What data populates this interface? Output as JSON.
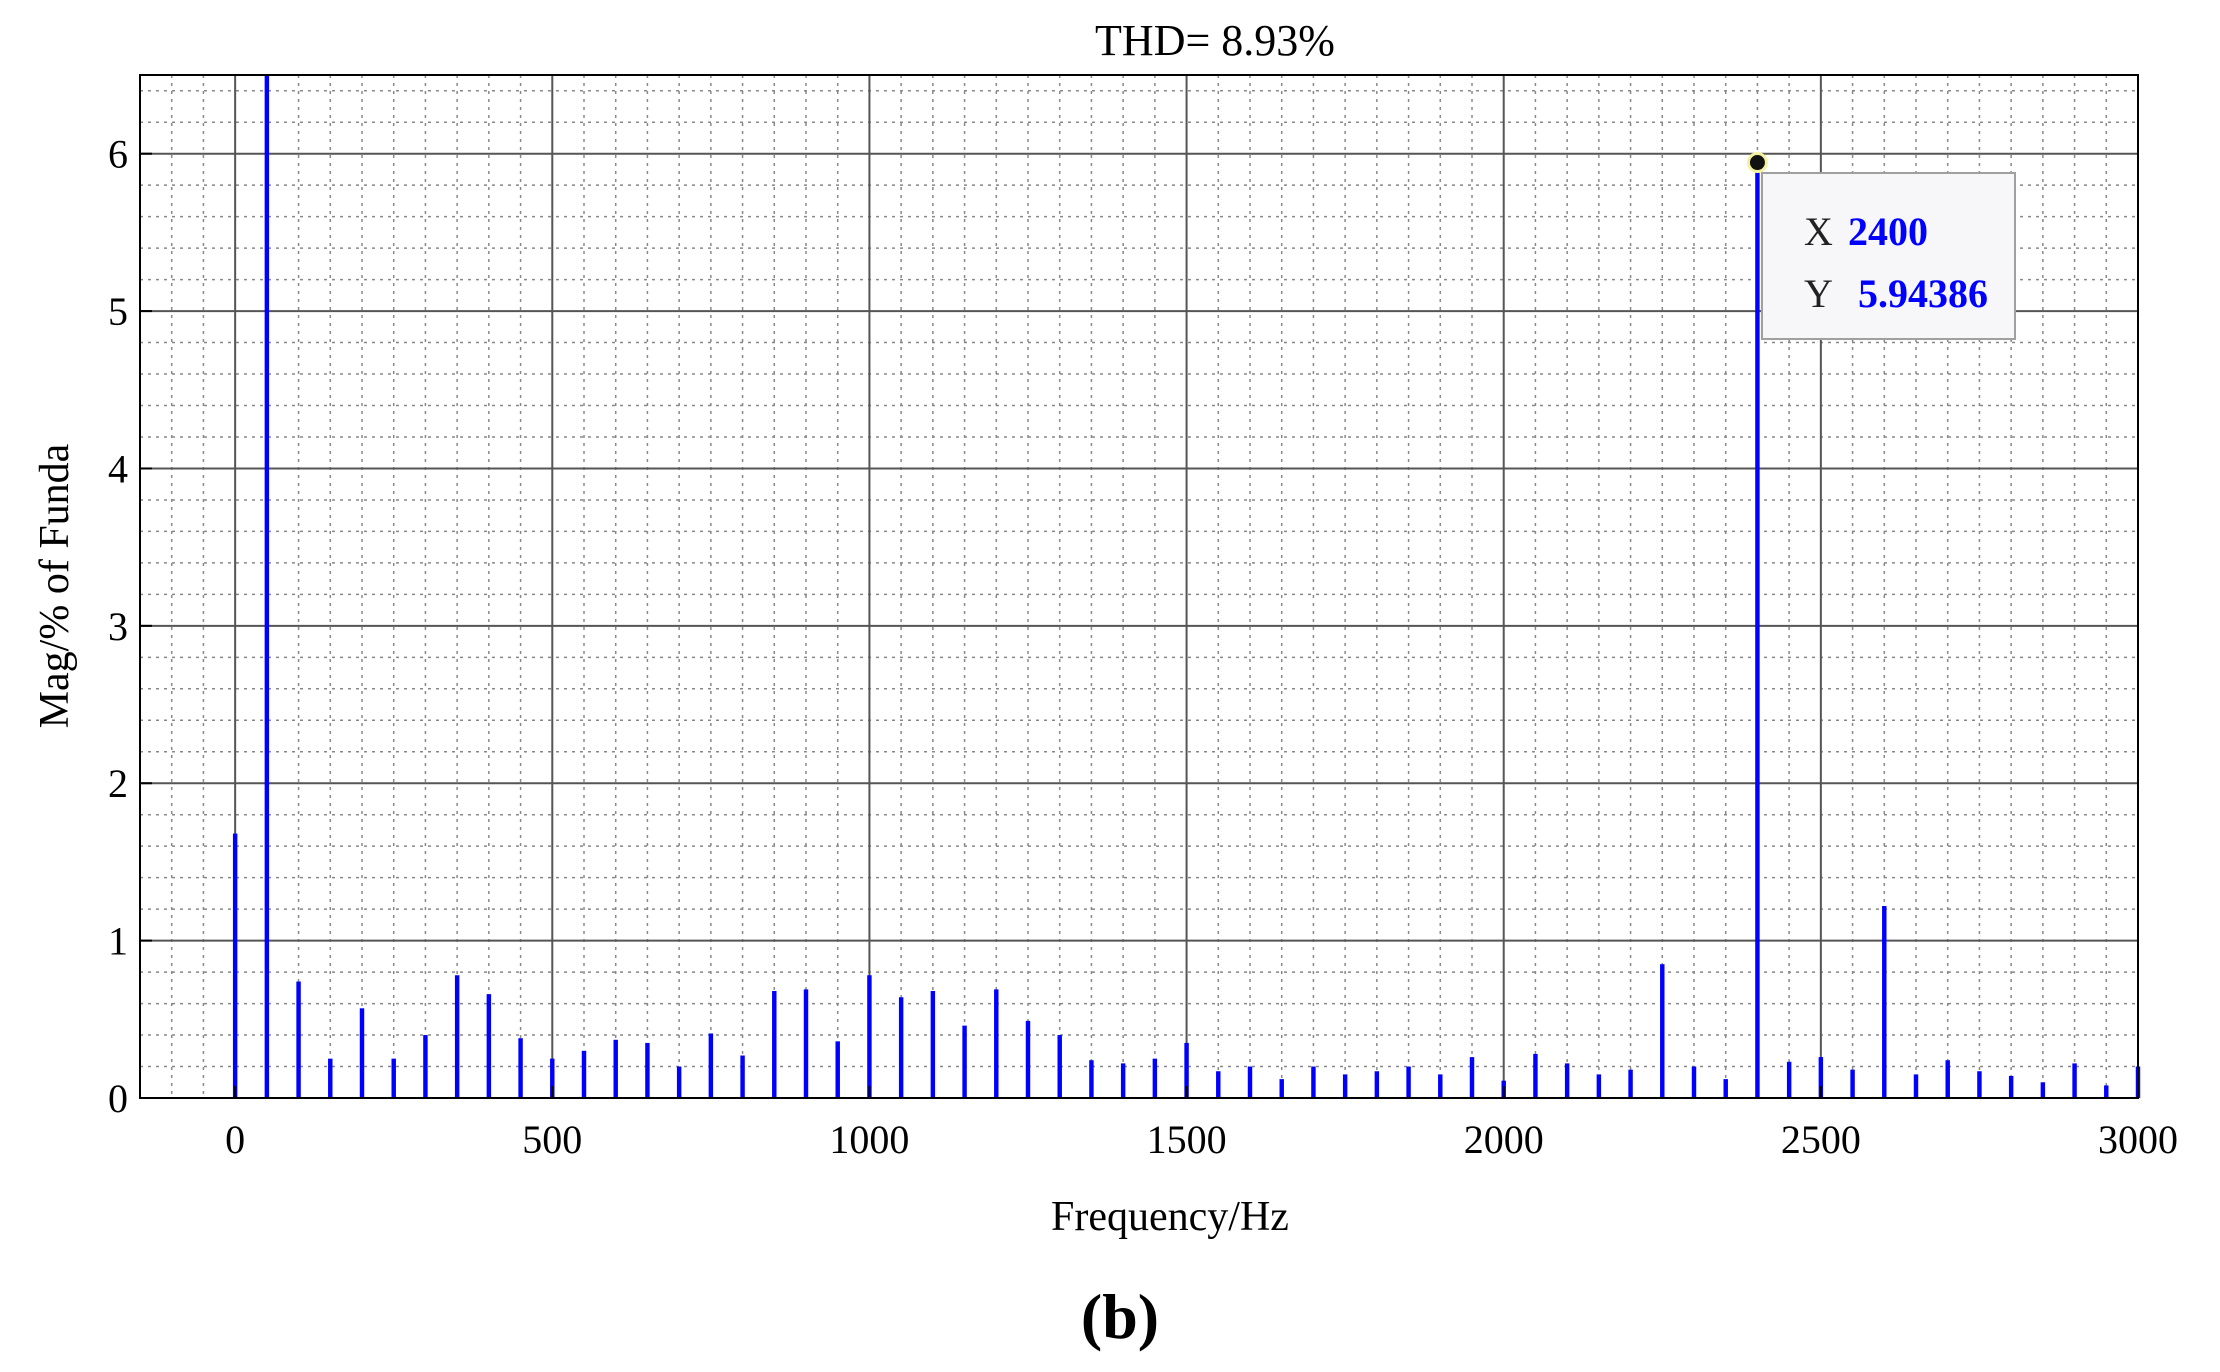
{
  "figure_label": "(b)",
  "chart_data": {
    "type": "bar",
    "title": "THD= 8.93%",
    "xlabel": "Frequency/Hz",
    "ylabel": "Mag/% of Funda",
    "xlim": [
      -150,
      3000
    ],
    "ylim": [
      0,
      6.5
    ],
    "xticks": [
      0,
      500,
      1000,
      1500,
      2000,
      2500,
      3000
    ],
    "yticks": [
      0,
      1,
      2,
      3,
      4,
      5,
      6
    ],
    "grid": true,
    "minor_grid": true,
    "colors": {
      "bar": "#0000ff",
      "grid_major": "#555555",
      "grid_minor": "#888888",
      "tooltip_value": "#0000ff"
    },
    "datatip": {
      "x_label": "X",
      "x_value": "2400",
      "y_label": "Y",
      "y_value": "5.94386"
    },
    "spectrum": {
      "x": [
        0,
        50,
        100,
        150,
        200,
        250,
        300,
        350,
        400,
        450,
        500,
        550,
        600,
        650,
        700,
        750,
        800,
        850,
        900,
        950,
        1000,
        1050,
        1100,
        1150,
        1200,
        1250,
        1300,
        1350,
        1400,
        1450,
        1500,
        1550,
        1600,
        1650,
        1700,
        1750,
        1800,
        1850,
        1900,
        1950,
        2000,
        2050,
        2100,
        2150,
        2200,
        2250,
        2300,
        2350,
        2400,
        2450,
        2500,
        2550,
        2600,
        2650,
        2700,
        2750,
        2800,
        2850,
        2900,
        2950,
        3000
      ],
      "y": [
        1.68,
        6.5,
        0.74,
        0.25,
        0.57,
        0.25,
        0.4,
        0.78,
        0.66,
        0.38,
        0.25,
        0.3,
        0.37,
        0.35,
        0.2,
        0.41,
        0.27,
        0.68,
        0.69,
        0.36,
        0.78,
        0.64,
        0.68,
        0.46,
        0.69,
        0.49,
        0.4,
        0.24,
        0.22,
        0.25,
        0.35,
        0.17,
        0.2,
        0.12,
        0.2,
        0.15,
        0.17,
        0.2,
        0.15,
        0.26,
        0.11,
        0.28,
        0.22,
        0.15,
        0.18,
        0.85,
        0.2,
        0.12,
        5.94386,
        0.23,
        0.26,
        0.18,
        1.22,
        0.15,
        0.24,
        0.17,
        0.14,
        0.1,
        0.22,
        0.08,
        0.2
      ]
    }
  }
}
